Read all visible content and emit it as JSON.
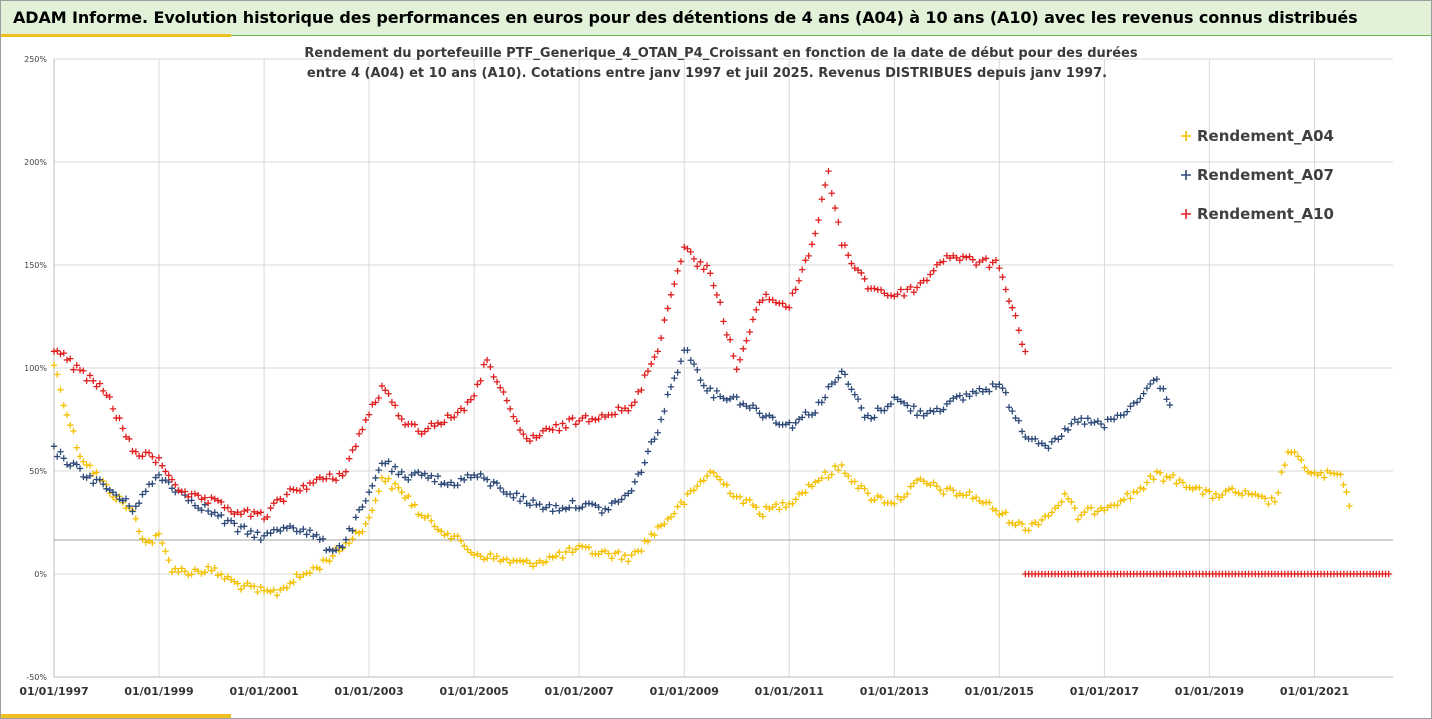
{
  "header": {
    "title": "ADAM Informe. Evolution historique des performances en euros pour des détentions de 4 ans (A04) à 10 ans (A10) avec les revenus connus distribués"
  },
  "chart_data": {
    "type": "scatter",
    "title_lines": [
      "Rendement du portefeuille PTF_Generique_4_OTAN_P4_Croissant  en fonction de la date de début pour des durées",
      "entre 4 (A04) et 10 ans (A10). Cotations entre janv 1997 et juil 2025. Revenus DISTRIBUES depuis janv 1997."
    ],
    "xlabel": "",
    "ylabel": "",
    "xlim": [
      "1997-01-01",
      "2022-07-01"
    ],
    "ylim": [
      -50,
      250
    ],
    "x_ticks": [
      "01/01/1997",
      "01/01/1999",
      "01/01/2001",
      "01/01/2003",
      "01/01/2005",
      "01/01/2007",
      "01/01/2009",
      "01/01/2011",
      "01/01/2013",
      "01/01/2015",
      "01/01/2017",
      "01/01/2019",
      "01/01/2021"
    ],
    "y_ticks": [
      "250%",
      "200%",
      "150%",
      "100%",
      "50%",
      "0%",
      "-50%"
    ],
    "y_tick_values": [
      250,
      200,
      150,
      100,
      50,
      0,
      -50
    ],
    "grid": true,
    "marker": "plus",
    "reference_line": 16.5,
    "legend_position": "top-right",
    "series": [
      {
        "name": "Rendement_A04",
        "color": "#f5c000",
        "x": [
          "1997-01-01",
          "1997-04-01",
          "1997-07-01",
          "1998-01-01",
          "1998-07-01",
          "1998-10-01",
          "1999-01-01",
          "1999-04-01",
          "1999-07-01",
          "2000-01-01",
          "2000-07-01",
          "2001-01-01",
          "2001-04-01",
          "2001-07-01",
          "2002-01-01",
          "2002-07-01",
          "2003-01-01",
          "2003-04-01",
          "2003-10-01",
          "2004-01-01",
          "2004-07-01",
          "2005-01-01",
          "2005-07-01",
          "2006-01-01",
          "2006-07-01",
          "2007-01-01",
          "2007-07-01",
          "2008-01-01",
          "2008-07-01",
          "2009-01-01",
          "2009-07-01",
          "2010-01-01",
          "2010-07-01",
          "2011-01-01",
          "2011-07-01",
          "2012-01-01",
          "2012-07-01",
          "2013-01-01",
          "2013-07-01",
          "2014-01-01",
          "2014-07-01",
          "2015-01-01",
          "2015-07-01",
          "2016-01-01",
          "2016-04-01",
          "2016-07-01",
          "2017-01-01",
          "2017-07-01",
          "2018-01-01",
          "2018-07-01",
          "2019-01-01",
          "2019-07-01",
          "2020-01-01",
          "2020-04-01",
          "2020-07-01",
          "2021-01-01",
          "2021-07-01",
          "2021-09-01"
        ],
        "y": [
          102,
          78,
          58,
          42,
          30,
          15,
          18,
          3,
          1,
          2,
          -5,
          -9,
          -9,
          -4,
          3,
          13,
          26,
          47,
          37,
          28,
          20,
          10,
          7,
          5,
          8,
          12,
          10,
          8,
          22,
          35,
          50,
          38,
          30,
          35,
          45,
          52,
          38,
          35,
          45,
          40,
          38,
          30,
          22,
          30,
          38,
          28,
          33,
          38,
          48,
          45,
          38,
          40,
          36,
          35,
          60,
          48,
          48,
          33
        ]
      },
      {
        "name": "Rendement_A07",
        "color": "#2e4a78",
        "x": [
          "1997-01-01",
          "1997-07-01",
          "1998-01-01",
          "1998-07-01",
          "1999-01-01",
          "1999-07-01",
          "2000-01-01",
          "2000-07-01",
          "2001-01-01",
          "2001-07-01",
          "2002-01-01",
          "2002-04-01",
          "2002-07-01",
          "2003-01-01",
          "2003-04-01",
          "2003-10-01",
          "2004-01-01",
          "2004-07-01",
          "2005-01-01",
          "2005-07-01",
          "2006-01-01",
          "2006-07-01",
          "2007-01-01",
          "2007-07-01",
          "2008-01-01",
          "2008-07-01",
          "2009-01-01",
          "2009-07-01",
          "2010-01-01",
          "2010-07-01",
          "2011-01-01",
          "2011-07-01",
          "2012-01-01",
          "2012-07-01",
          "2013-01-01",
          "2013-07-01",
          "2014-01-01",
          "2014-07-01",
          "2015-01-01",
          "2015-07-01",
          "2016-01-01",
          "2016-07-01",
          "2017-01-01",
          "2017-07-01",
          "2018-01-01",
          "2018-04-01"
        ],
        "y": [
          60,
          50,
          42,
          32,
          48,
          38,
          30,
          22,
          18,
          24,
          18,
          12,
          14,
          38,
          55,
          45,
          50,
          43,
          48,
          42,
          35,
          32,
          34,
          31,
          40,
          70,
          110,
          88,
          85,
          78,
          72,
          80,
          98,
          75,
          85,
          78,
          82,
          88,
          92,
          68,
          62,
          75,
          72,
          80,
          95,
          82
        ]
      },
      {
        "name": "Rendement_A10",
        "color": "#e02020",
        "x": [
          "1997-01-01",
          "1997-07-01",
          "1998-01-01",
          "1998-07-01",
          "1999-01-01",
          "1999-07-01",
          "2000-01-01",
          "2000-07-01",
          "2001-01-01",
          "2001-07-01",
          "2002-01-01",
          "2002-07-01",
          "2003-01-01",
          "2003-04-01",
          "2003-10-01",
          "2004-01-01",
          "2004-07-01",
          "2005-01-01",
          "2005-04-01",
          "2005-10-01",
          "2006-01-01",
          "2006-07-01",
          "2007-01-01",
          "2007-07-01",
          "2008-01-01",
          "2008-07-01",
          "2009-01-01",
          "2009-04-01",
          "2009-07-01",
          "2010-01-01",
          "2010-07-01",
          "2011-01-01",
          "2011-07-01",
          "2011-10-01",
          "2012-01-01",
          "2012-07-01",
          "2013-01-01",
          "2013-07-01",
          "2014-01-01",
          "2014-07-01",
          "2015-01-01",
          "2015-07-01"
        ],
        "y": [
          110,
          98,
          88,
          60,
          55,
          38,
          35,
          30,
          28,
          40,
          45,
          48,
          78,
          90,
          72,
          70,
          75,
          85,
          105,
          75,
          65,
          70,
          75,
          78,
          80,
          110,
          160,
          150,
          148,
          100,
          135,
          130,
          165,
          195,
          160,
          140,
          135,
          140,
          155,
          152,
          150,
          108
        ]
      },
      {
        "name": "",
        "color": "#e02020",
        "x": [
          "2015-07-01",
          "2016-01-01",
          "2016-07-01",
          "2017-01-01",
          "2017-07-01",
          "2018-01-01",
          "2018-07-01",
          "2019-01-01",
          "2019-07-01",
          "2020-01-01",
          "2020-07-01",
          "2021-01-01",
          "2021-07-01",
          "2022-01-01",
          "2022-06-01"
        ],
        "y": [
          0,
          0,
          0,
          0,
          0,
          0,
          0,
          0,
          0,
          0,
          0,
          0,
          0,
          0,
          0
        ]
      }
    ]
  }
}
